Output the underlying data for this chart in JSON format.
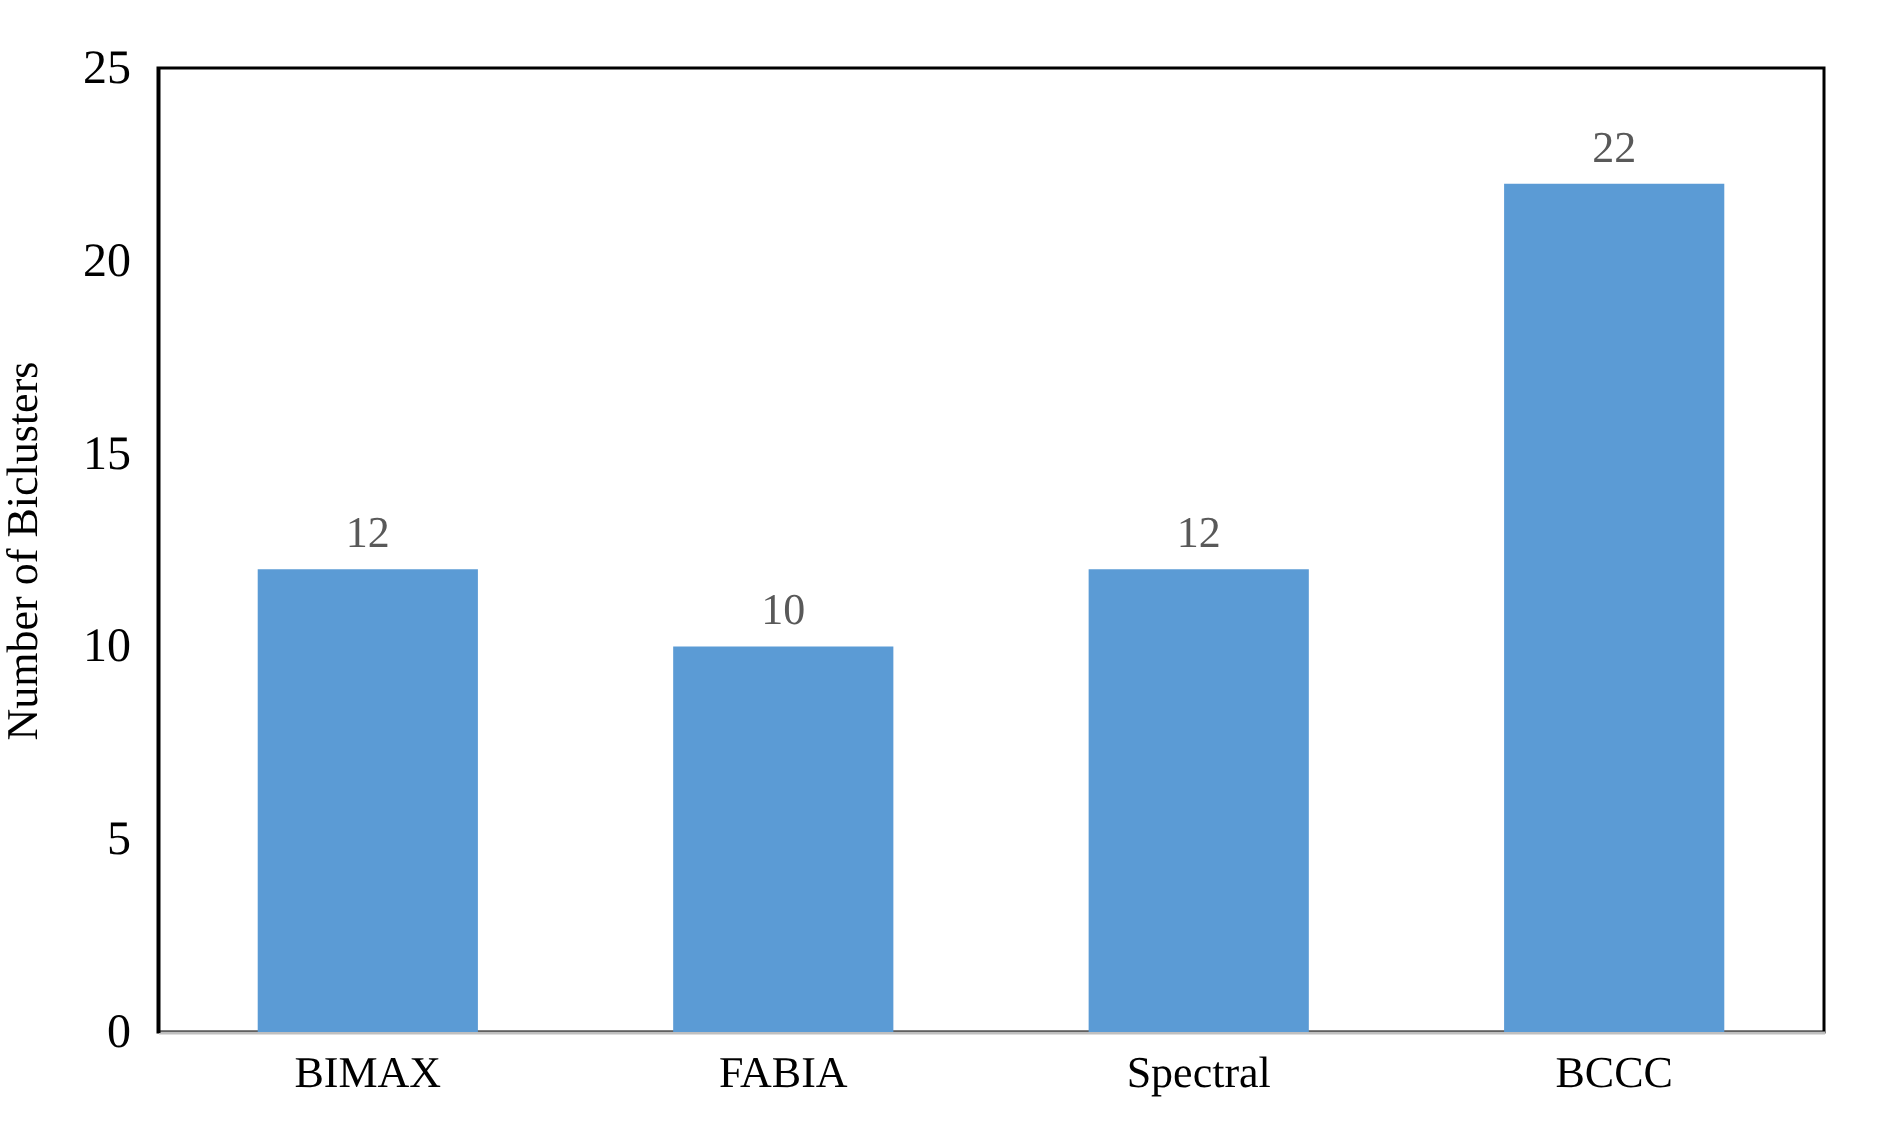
{
  "chart_data": {
    "type": "bar",
    "ylabel": "Number of Biclusters",
    "categories": [
      "BIMAX",
      "FABIA",
      "Spectral",
      "BCCC"
    ],
    "values": [
      12,
      10,
      12,
      22
    ],
    "color": "#5b9bd5",
    "ylim": [
      0,
      25
    ],
    "yticks": [
      0,
      5,
      10,
      15,
      20,
      25
    ],
    "data_labels": true
  }
}
